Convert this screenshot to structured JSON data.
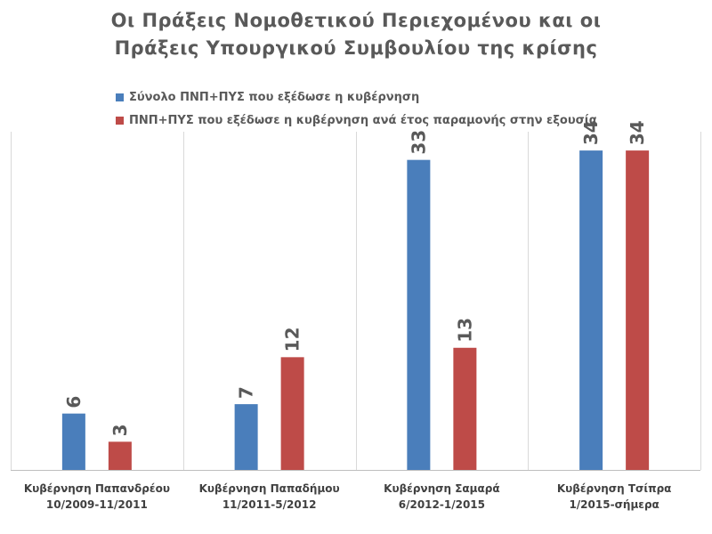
{
  "chart_data": {
    "type": "bar",
    "title": "Οι Πράξεις Νομοθετικού Περιεχομένου και οι Πράξεις Υπουργικού Συμβουλίου της κρίσης",
    "title_lines": [
      "Οι Πράξεις Νομοθετικού Περιεχομένου και οι",
      "Πράξεις Υπουργικού Συμβουλίου της κρίσης"
    ],
    "categories": [
      [
        "Κυβέρνηση Παπανδρέου",
        "10/2009-11/2011"
      ],
      [
        "Κυβέρνηση Παπαδήμου",
        "11/2011-5/2012"
      ],
      [
        "Κυβέρνηση Σαμαρά",
        "6/2012-1/2015"
      ],
      [
        "Κυβέρνηση Τσίπρα",
        "1/2015-σήμερα"
      ]
    ],
    "series": [
      {
        "name": "Σύνολο ΠΝΠ+ΠΥΣ που εξέδωσε η κυβέρνηση",
        "color": "#4a7ebb",
        "values": [
          6,
          7,
          33,
          34
        ]
      },
      {
        "name": "ΠΝΠ+ΠΥΣ που εξέδωσε η κυβέρνηση ανά έτος παραμονής στην εξουσία",
        "color": "#be4b48",
        "values": [
          3,
          12,
          13,
          34
        ]
      }
    ],
    "xlabel": "",
    "ylabel": "",
    "ylim": [
      0,
      36
    ],
    "grid": false,
    "legend_position": "top-left",
    "label_color": "#595959"
  }
}
